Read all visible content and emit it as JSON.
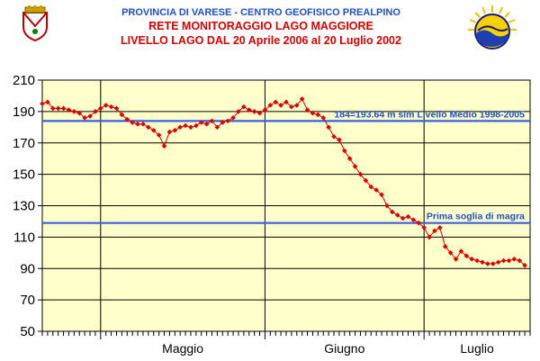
{
  "header": {
    "line1": "PROVINCIA DI VARESE - CENTRO GEOFISICO PREALPINO",
    "line2": "RETE MONITORAGGIO LAGO MAGGIORE",
    "line3": "LIVELLO LAGO DAL 20 Aprile 2006 al   20 Luglio 2002"
  },
  "colors": {
    "plot_bg": "#ffffcc",
    "series": "#e00000",
    "reference": "#3a5fe0",
    "title_blue": "#1f4fd0",
    "title_red": "#e00000"
  },
  "chart_data": {
    "type": "line",
    "title": "",
    "xlabel": "",
    "ylabel": "",
    "ylim": [
      50,
      210
    ],
    "yticks": [
      50,
      70,
      90,
      110,
      130,
      150,
      170,
      190,
      210
    ],
    "x_range_days": [
      0,
      92
    ],
    "months": [
      {
        "label": "Maggio",
        "start": 11,
        "end": 42
      },
      {
        "label": "Giugno",
        "start": 42,
        "end": 72
      },
      {
        "label": "Luglio",
        "start": 72,
        "end": 92
      }
    ],
    "month_boundaries": [
      11,
      42,
      72
    ],
    "reference_lines": [
      {
        "value": 184,
        "label": "184=193.64 m slm Livello Medio 1998-2005"
      },
      {
        "value": 119,
        "label": "Prima soglia di magra"
      }
    ],
    "series": [
      {
        "values": [
          [
            0,
            195
          ],
          [
            1,
            196
          ],
          [
            2,
            192
          ],
          [
            3,
            192
          ],
          [
            4,
            192
          ],
          [
            5,
            191
          ],
          [
            6,
            190
          ],
          [
            7,
            189
          ],
          [
            8,
            186
          ],
          [
            9,
            187
          ],
          [
            10,
            190
          ],
          [
            11,
            192
          ],
          [
            12,
            194
          ],
          [
            13,
            193
          ],
          [
            14,
            192
          ],
          [
            15,
            188
          ],
          [
            16,
            185
          ],
          [
            17,
            183
          ],
          [
            18,
            182
          ],
          [
            19,
            182
          ],
          [
            20,
            180
          ],
          [
            21,
            178
          ],
          [
            22,
            175
          ],
          [
            23,
            168
          ],
          [
            24,
            177
          ],
          [
            25,
            178
          ],
          [
            26,
            180
          ],
          [
            27,
            181
          ],
          [
            28,
            180
          ],
          [
            29,
            181
          ],
          [
            30,
            183
          ],
          [
            31,
            182
          ],
          [
            32,
            184
          ],
          [
            33,
            180
          ],
          [
            34,
            183
          ],
          [
            35,
            184
          ],
          [
            36,
            186
          ],
          [
            37,
            190
          ],
          [
            38,
            193
          ],
          [
            39,
            191
          ],
          [
            40,
            190
          ],
          [
            41,
            189
          ],
          [
            42,
            191
          ],
          [
            43,
            194
          ],
          [
            44,
            196
          ],
          [
            45,
            194
          ],
          [
            46,
            196
          ],
          [
            47,
            193
          ],
          [
            48,
            194
          ],
          [
            49,
            198
          ],
          [
            50,
            191
          ],
          [
            51,
            189
          ],
          [
            52,
            188
          ],
          [
            53,
            186
          ],
          [
            54,
            180
          ],
          [
            55,
            174
          ],
          [
            56,
            172
          ],
          [
            57,
            165
          ],
          [
            58,
            160
          ],
          [
            59,
            155
          ],
          [
            60,
            150
          ],
          [
            61,
            146
          ],
          [
            62,
            142
          ],
          [
            63,
            140
          ],
          [
            64,
            137
          ],
          [
            65,
            130
          ],
          [
            66,
            126
          ],
          [
            67,
            124
          ],
          [
            68,
            122
          ],
          [
            69,
            123
          ],
          [
            70,
            121
          ],
          [
            71,
            119
          ],
          [
            72,
            116
          ],
          [
            73,
            110
          ],
          [
            74,
            114
          ],
          [
            75,
            116
          ],
          [
            76,
            104
          ],
          [
            77,
            100
          ],
          [
            78,
            96
          ],
          [
            79,
            101
          ],
          [
            80,
            98
          ],
          [
            81,
            96
          ],
          [
            82,
            95
          ],
          [
            83,
            94
          ],
          [
            84,
            93
          ],
          [
            85,
            93
          ],
          [
            86,
            94
          ],
          [
            87,
            95
          ],
          [
            88,
            95
          ],
          [
            89,
            96
          ],
          [
            90,
            95
          ],
          [
            91,
            92
          ]
        ]
      }
    ]
  }
}
